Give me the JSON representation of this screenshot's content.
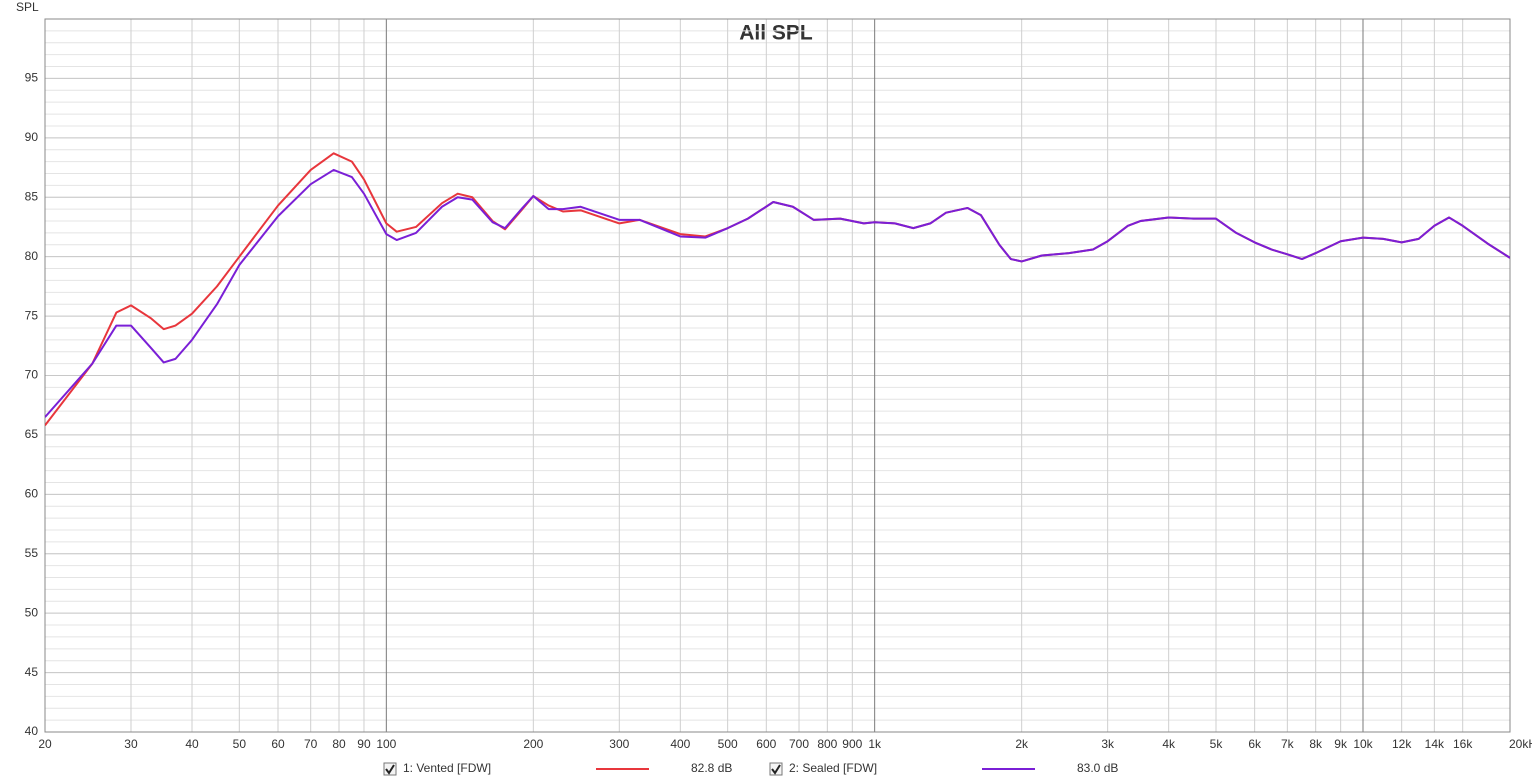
{
  "chart_data": {
    "type": "line",
    "title": "All SPL",
    "y_label": "SPL",
    "log_x": true,
    "grid": true,
    "xlim": [
      20,
      20000
    ],
    "ylim": [
      40,
      100
    ],
    "yticks": [
      40,
      45,
      50,
      55,
      60,
      65,
      70,
      75,
      80,
      85,
      90,
      95
    ],
    "xticks": [
      20,
      30,
      40,
      50,
      60,
      70,
      80,
      90,
      100,
      200,
      300,
      400,
      500,
      600,
      700,
      800,
      900,
      {
        "value": 1000,
        "label": "1k"
      },
      {
        "value": 2000,
        "label": "2k"
      },
      {
        "value": 3000,
        "label": "3k"
      },
      {
        "value": 4000,
        "label": "4k"
      },
      {
        "value": 5000,
        "label": "5k"
      },
      {
        "value": 6000,
        "label": "6k"
      },
      {
        "value": 7000,
        "label": "7k"
      },
      {
        "value": 8000,
        "label": "8k"
      },
      {
        "value": 9000,
        "label": "9k"
      },
      {
        "value": 10000,
        "label": "10k"
      },
      {
        "value": 12000,
        "label": "12k"
      },
      {
        "value": 14000,
        "label": "14k"
      },
      {
        "value": 16000,
        "label": "16k"
      },
      {
        "value": 20000,
        "label": "20kHz"
      }
    ],
    "x": [
      20,
      25,
      28,
      30,
      33,
      35,
      37,
      40,
      45,
      50,
      60,
      70,
      78,
      85,
      90,
      100,
      105,
      115,
      130,
      140,
      150,
      165,
      175,
      190,
      200,
      215,
      230,
      250,
      300,
      330,
      400,
      450,
      500,
      550,
      620,
      680,
      750,
      850,
      950,
      1000,
      1100,
      1200,
      1300,
      1400,
      1550,
      1650,
      1800,
      1900,
      2000,
      2200,
      2500,
      2800,
      3000,
      3300,
      3500,
      4000,
      4500,
      5000,
      5500,
      6000,
      6500,
      7000,
      7500,
      8000,
      9000,
      10000,
      11000,
      12000,
      13000,
      14000,
      15000,
      16000,
      18000,
      20000
    ],
    "series": [
      {
        "name": "1: Vented [FDW]",
        "color": "#e8363c",
        "legend_value": "82.8 dB",
        "values": [
          65.8,
          71,
          75.3,
          75.9,
          74.8,
          73.9,
          74.2,
          75.2,
          77.5,
          80,
          84.3,
          87.3,
          88.7,
          88,
          86.5,
          82.8,
          82.1,
          82.5,
          84.5,
          85.3,
          85,
          83,
          82.3,
          84,
          85.1,
          84.3,
          83.8,
          83.9,
          82.8,
          83.1,
          81.9,
          81.7,
          82.4,
          83.2,
          84.6,
          84.2,
          83.1,
          83.2,
          82.8,
          82.9,
          82.8,
          82.4,
          82.8,
          83.7,
          84.1,
          83.5,
          81,
          79.8,
          79.6,
          80.1,
          80.3,
          80.6,
          81.3,
          82.6,
          83,
          83.3,
          83.2,
          83.2,
          82,
          81.2,
          80.6,
          80.2,
          79.8,
          80.3,
          81.3,
          81.6,
          81.5,
          81.2,
          81.5,
          82.6,
          83.3,
          82.6,
          81.1,
          79.9
        ]
      },
      {
        "name": "2: Sealed [FDW]",
        "color": "#7a1fd6",
        "legend_value": "83.0 dB",
        "values": [
          66.5,
          71,
          74.2,
          74.2,
          72.3,
          71.1,
          71.4,
          73,
          76,
          79.3,
          83.4,
          86.1,
          87.3,
          86.7,
          85.3,
          81.9,
          81.4,
          82,
          84.2,
          85,
          84.8,
          82.9,
          82.4,
          84.1,
          85.1,
          84,
          84,
          84.2,
          83.1,
          83.1,
          81.7,
          81.6,
          82.4,
          83.2,
          84.6,
          84.2,
          83.1,
          83.2,
          82.8,
          82.9,
          82.8,
          82.4,
          82.8,
          83.7,
          84.1,
          83.5,
          81,
          79.8,
          79.6,
          80.1,
          80.3,
          80.6,
          81.3,
          82.6,
          83,
          83.3,
          83.2,
          83.2,
          82,
          81.2,
          80.6,
          80.2,
          79.8,
          80.3,
          81.3,
          81.6,
          81.5,
          81.2,
          81.5,
          82.6,
          83.3,
          82.6,
          81.1,
          79.9
        ]
      }
    ]
  }
}
